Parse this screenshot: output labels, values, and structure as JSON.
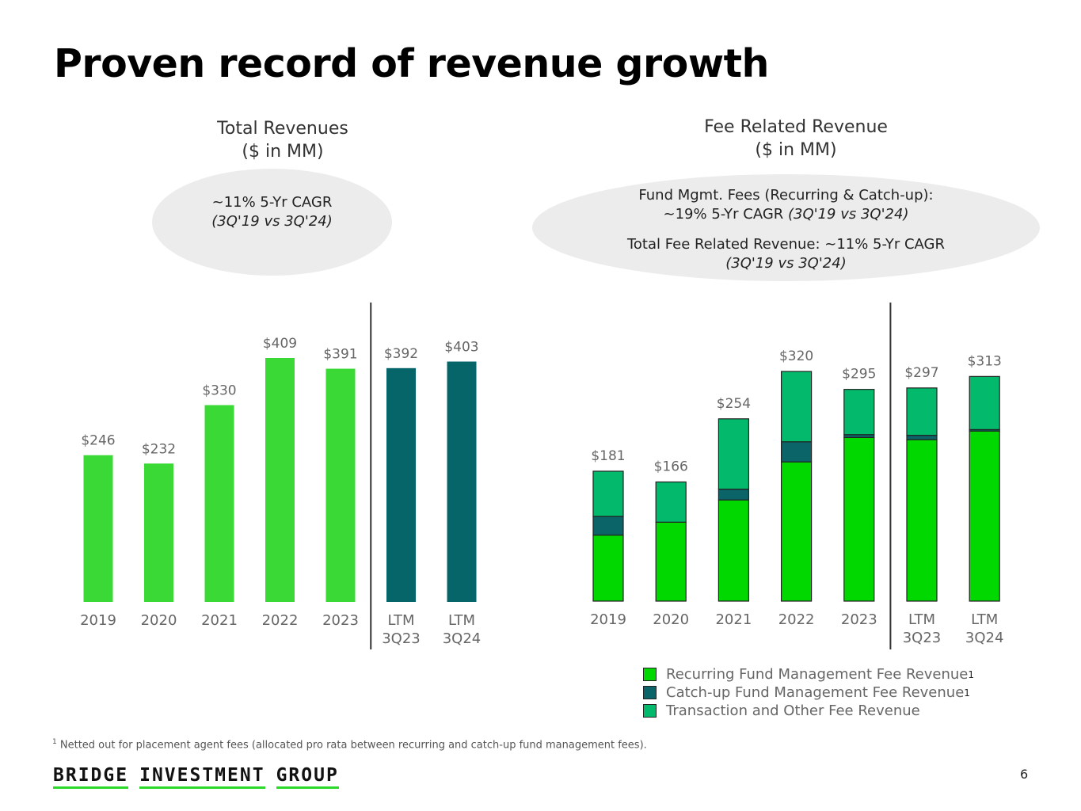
{
  "page": {
    "title": "Proven record of revenue growth",
    "footnote_marker": "1",
    "footnote": "Netted out for placement agent fees (allocated pro rata between recurring and catch-up fund management fees).",
    "logo_words": [
      "BRIDGE",
      "INVESTMENT",
      "GROUP"
    ],
    "page_number": "6"
  },
  "left": {
    "title_line1": "Total Revenues",
    "title_line2": "($ in MM)",
    "cagr_line1": "~11% 5-Yr CAGR",
    "cagr_line2": "(3Q'19 vs 3Q'24)"
  },
  "right": {
    "title_line1": "Fee Related Revenue",
    "title_line2": "($ in MM)",
    "note1_line1": "Fund Mgmt. Fees (Recurring & Catch-up):",
    "note1_line2a": "~19% 5-Yr CAGR ",
    "note1_line2b": "(3Q'19 vs 3Q'24)",
    "note2_line1": "Total Fee Related Revenue: ~11% 5-Yr CAGR",
    "note2_line2": "(3Q'19 vs 3Q'24)"
  },
  "legend": {
    "items": [
      {
        "label": "Recurring Fund Management Fee Revenue",
        "sup": "1",
        "color": "#00d800"
      },
      {
        "label": "Catch-up Fund Management Fee Revenue",
        "sup": "1",
        "color": "#0a6468"
      },
      {
        "label": "Transaction and Other Fee Revenue",
        "sup": "",
        "color": "#03b96c"
      }
    ]
  },
  "chart_data": [
    {
      "type": "bar",
      "title": "Total Revenues ($ in MM)",
      "categories": [
        [
          "2019"
        ],
        [
          "2020"
        ],
        [
          "2021"
        ],
        [
          "2022"
        ],
        [
          "2023"
        ],
        [
          "LTM",
          "3Q23"
        ],
        [
          "LTM",
          "3Q24"
        ]
      ],
      "values": [
        246,
        232,
        330,
        409,
        391,
        392,
        403
      ],
      "labels": [
        "$246",
        "$232",
        "$330",
        "$409",
        "$391",
        "$392",
        "$403"
      ],
      "colors": [
        "#3ad936",
        "#3ad936",
        "#3ad936",
        "#3ad936",
        "#3ad936",
        "#066568",
        "#066568"
      ],
      "ylim": [
        0,
        409
      ],
      "divider_after_index": 4
    },
    {
      "type": "stacked-bar",
      "title": "Fee Related Revenue ($ in MM)",
      "categories": [
        [
          "2019"
        ],
        [
          "2020"
        ],
        [
          "2021"
        ],
        [
          "2022"
        ],
        [
          "2023"
        ],
        [
          "LTM",
          "3Q23"
        ],
        [
          "LTM",
          "3Q24"
        ]
      ],
      "totals": [
        181,
        166,
        254,
        320,
        295,
        297,
        313
      ],
      "labels": [
        "$181",
        "$166",
        "$254",
        "$320",
        "$295",
        "$297",
        "$313"
      ],
      "series": [
        {
          "name": "Recurring Fund Management Fee Revenue",
          "color": "#00d800",
          "values": [
            92,
            110,
            141,
            194,
            228,
            225,
            237
          ]
        },
        {
          "name": "Catch-up Fund Management Fee Revenue",
          "color": "#0a6468",
          "values": [
            26,
            0,
            15,
            28,
            4,
            6,
            2
          ]
        },
        {
          "name": "Transaction and Other Fee Revenue",
          "color": "#03b96c",
          "values": [
            63,
            56,
            98,
            98,
            63,
            66,
            74
          ]
        }
      ],
      "ylim": [
        0,
        320
      ],
      "divider_after_index": 4
    }
  ]
}
